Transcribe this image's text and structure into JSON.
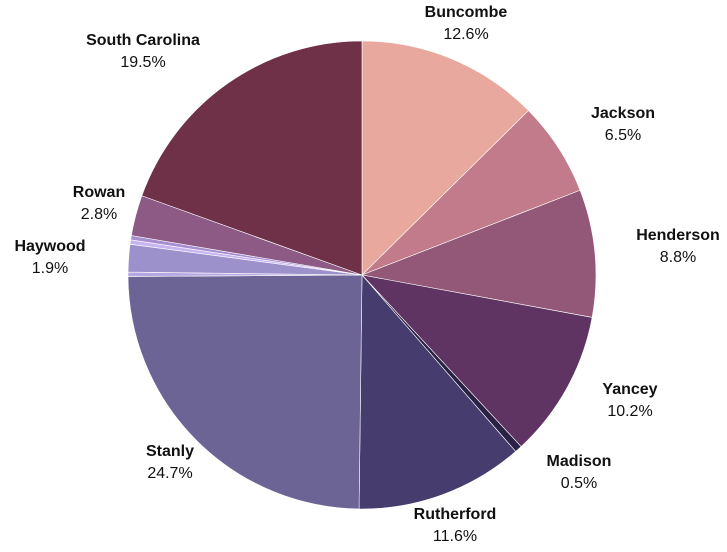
{
  "chart_data": {
    "type": "pie",
    "title": "",
    "legend": "none",
    "slices": [
      {
        "label": "Buncombe",
        "value": 12.6,
        "value_label": "12.6%",
        "color": "#E9A89E"
      },
      {
        "label": "Jackson",
        "value": 6.5,
        "value_label": "6.5%",
        "color": "#C27B8A"
      },
      {
        "label": "Henderson",
        "value": 8.8,
        "value_label": "8.8%",
        "color": "#935877"
      },
      {
        "label": "Yancey",
        "value": 10.2,
        "value_label": "10.2%",
        "color": "#5F3462"
      },
      {
        "label": "Madison",
        "value": 0.5,
        "value_label": "0.5%",
        "color": "#2A2145"
      },
      {
        "label": "Rutherford",
        "value": 11.6,
        "value_label": "11.6%",
        "color": "#463C6D"
      },
      {
        "label": "Stanly",
        "value": 24.7,
        "value_label": "24.7%",
        "color": "#6D6496"
      },
      {
        "label": "",
        "value": 0.3,
        "value_label": "",
        "color": "#B6A7E2"
      },
      {
        "label": "Haywood",
        "value": 1.9,
        "value_label": "1.9%",
        "color": "#9D91CC"
      },
      {
        "label": "",
        "value": 0.3,
        "value_label": "",
        "color": "#C6B5F0"
      },
      {
        "label": "",
        "value": 0.3,
        "value_label": "",
        "color": "#A88FD0"
      },
      {
        "label": "Rowan",
        "value": 2.8,
        "value_label": "2.8%",
        "color": "#8C5A85"
      },
      {
        "label": "South Carolina",
        "value": 19.5,
        "value_label": "19.5%",
        "color": "#6E3148"
      }
    ]
  }
}
